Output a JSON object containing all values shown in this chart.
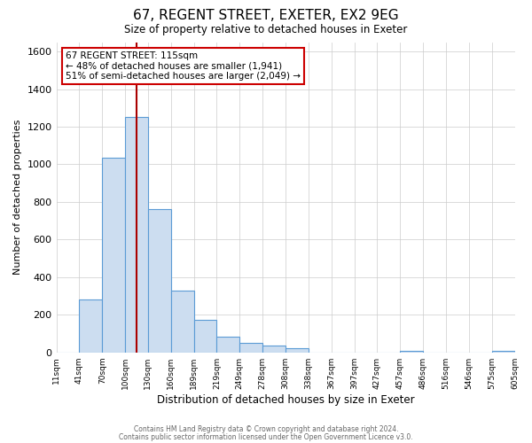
{
  "title": "67, REGENT STREET, EXETER, EX2 9EG",
  "subtitle": "Size of property relative to detached houses in Exeter",
  "xlabel": "Distribution of detached houses by size in Exeter",
  "ylabel": "Number of detached properties",
  "bar_values": [
    0,
    280,
    1035,
    1250,
    760,
    330,
    175,
    85,
    50,
    35,
    20,
    0,
    0,
    0,
    0,
    10,
    0,
    0,
    0,
    10
  ],
  "bin_labels": [
    "11sqm",
    "41sqm",
    "70sqm",
    "100sqm",
    "130sqm",
    "160sqm",
    "189sqm",
    "219sqm",
    "249sqm",
    "278sqm",
    "308sqm",
    "338sqm",
    "367sqm",
    "397sqm",
    "427sqm",
    "457sqm",
    "486sqm",
    "516sqm",
    "546sqm",
    "575sqm",
    "605sqm"
  ],
  "bar_color": "#ccddf0",
  "bar_edgecolor": "#5b9bd5",
  "vline_x": 4,
  "vline_color": "#aa0000",
  "ylim": [
    0,
    1650
  ],
  "yticks": [
    0,
    200,
    400,
    600,
    800,
    1000,
    1200,
    1400,
    1600
  ],
  "annotation_line1": "67 REGENT STREET: 115sqm",
  "annotation_line2": "← 48% of detached houses are smaller (1,941)",
  "annotation_line3": "51% of semi-detached houses are larger (2,049) →",
  "footer_line1": "Contains HM Land Registry data © Crown copyright and database right 2024.",
  "footer_line2": "Contains public sector information licensed under the Open Government Licence v3.0.",
  "background_color": "#ffffff",
  "grid_color": "#cccccc"
}
